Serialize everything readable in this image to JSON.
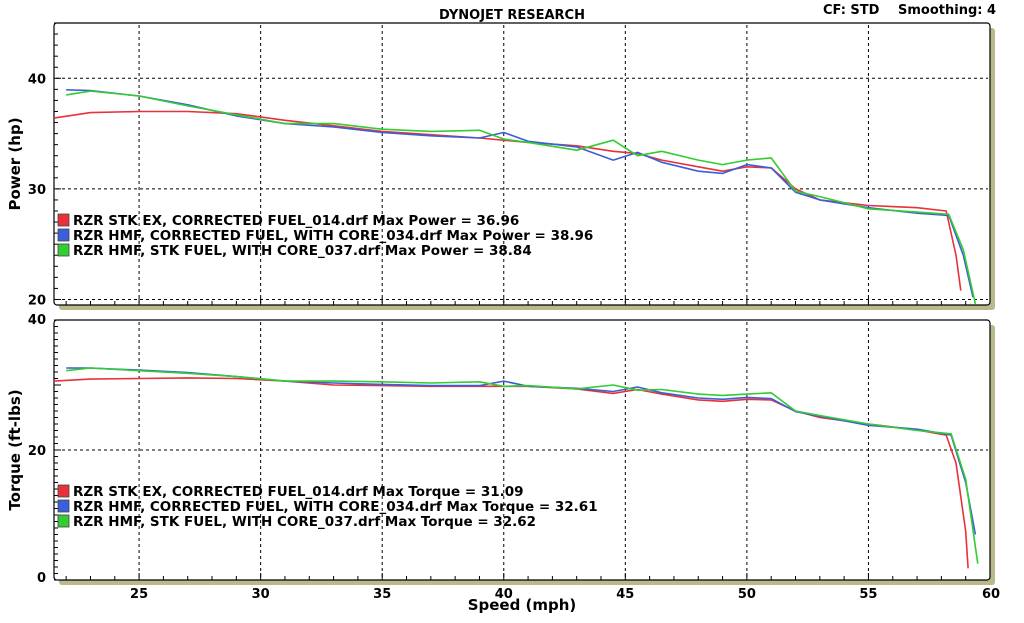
{
  "header": {
    "title": "DYNOJET RESEARCH",
    "cf": "CF: STD",
    "smoothing": "Smoothing: 4"
  },
  "colors": {
    "red": "#e8313a",
    "blue": "#3b5fd9",
    "green": "#33cc33",
    "panel_bg": "#ffffff",
    "frame_shadow": "#b9b98c",
    "grid": "#000000"
  },
  "chart_data": [
    {
      "type": "line",
      "name": "power",
      "title": "",
      "xlabel": "",
      "ylabel": "Power (hp)",
      "xlim": [
        21.5,
        60
      ],
      "ylim": [
        19.5,
        45
      ],
      "x_ticks": [
        25,
        30,
        35,
        40,
        45,
        50,
        55
      ],
      "y_ticks": [
        20,
        30,
        40
      ],
      "grid": true,
      "legend_position": "lower-left",
      "series": [
        {
          "name": "RZR STK EX, CORRECTED FUEL_014.drf",
          "legend": "RZR STK EX, CORRECTED FUEL_014.drf Max Power = 36.96",
          "color": "#e8313a",
          "points": [
            [
              21.5,
              36.4
            ],
            [
              23,
              36.9
            ],
            [
              25,
              37.0
            ],
            [
              27,
              37.0
            ],
            [
              29,
              36.8
            ],
            [
              31,
              36.2
            ],
            [
              33,
              35.7
            ],
            [
              35,
              35.2
            ],
            [
              37,
              34.9
            ],
            [
              39,
              34.6
            ],
            [
              41,
              34.2
            ],
            [
              43,
              33.9
            ],
            [
              44.5,
              33.4
            ],
            [
              45.5,
              33.2
            ],
            [
              46.5,
              32.6
            ],
            [
              48,
              32.0
            ],
            [
              49,
              31.6
            ],
            [
              50,
              32.0
            ],
            [
              51,
              31.9
            ],
            [
              52,
              30.0
            ],
            [
              53,
              29.0
            ],
            [
              55,
              28.5
            ],
            [
              57,
              28.3
            ],
            [
              58.2,
              28.0
            ],
            [
              58.6,
              24.0
            ],
            [
              58.8,
              20.8
            ]
          ]
        },
        {
          "name": "RZR HMF, CORRECTED FUEL, WITH CORE_034.drf",
          "legend": "RZR HMF, CORRECTED FUEL, WITH CORE_034.drf Max Power = 38.96",
          "color": "#3b5fd9",
          "points": [
            [
              22,
              38.96
            ],
            [
              23,
              38.9
            ],
            [
              25,
              38.4
            ],
            [
              27,
              37.6
            ],
            [
              29,
              36.6
            ],
            [
              31,
              35.9
            ],
            [
              33,
              35.6
            ],
            [
              35,
              35.1
            ],
            [
              37,
              34.8
            ],
            [
              39,
              34.6
            ],
            [
              40,
              35.1
            ],
            [
              41,
              34.3
            ],
            [
              43,
              33.8
            ],
            [
              44.5,
              32.6
            ],
            [
              45.5,
              33.3
            ],
            [
              46.5,
              32.4
            ],
            [
              48,
              31.6
            ],
            [
              49,
              31.4
            ],
            [
              50,
              32.2
            ],
            [
              51,
              31.9
            ],
            [
              52,
              29.7
            ],
            [
              53,
              29.0
            ],
            [
              55,
              28.3
            ],
            [
              57,
              27.8
            ],
            [
              58.3,
              27.6
            ],
            [
              58.9,
              24.0
            ],
            [
              59.3,
              20.2
            ]
          ]
        },
        {
          "name": "RZR HMF, STK FUEL, WITH CORE_037.drf",
          "legend": "RZR HMF, STK FUEL, WITH CORE_037.drf Max Power = 38.84",
          "color": "#33cc33",
          "points": [
            [
              22,
              38.5
            ],
            [
              23,
              38.84
            ],
            [
              25,
              38.4
            ],
            [
              27,
              37.5
            ],
            [
              29,
              36.7
            ],
            [
              31,
              35.9
            ],
            [
              33,
              35.9
            ],
            [
              35,
              35.4
            ],
            [
              37,
              35.2
            ],
            [
              39,
              35.3
            ],
            [
              40,
              34.5
            ],
            [
              41,
              34.2
            ],
            [
              43,
              33.5
            ],
            [
              44.5,
              34.4
            ],
            [
              45.5,
              33.0
            ],
            [
              46.5,
              33.4
            ],
            [
              48,
              32.6
            ],
            [
              49,
              32.2
            ],
            [
              50,
              32.6
            ],
            [
              51,
              32.8
            ],
            [
              52,
              29.8
            ],
            [
              53,
              29.3
            ],
            [
              55,
              28.2
            ],
            [
              57,
              27.9
            ],
            [
              58.3,
              27.7
            ],
            [
              58.9,
              24.5
            ],
            [
              59.4,
              19.6
            ]
          ]
        }
      ]
    },
    {
      "type": "line",
      "name": "torque",
      "title": "",
      "xlabel": "Speed (mph)",
      "ylabel": "Torque (ft-lbs)",
      "xlim": [
        21.5,
        60
      ],
      "ylim": [
        0,
        40
      ],
      "x_ticks": [
        25,
        30,
        35,
        40,
        45,
        50,
        55,
        60
      ],
      "y_ticks": [
        0,
        20,
        40
      ],
      "grid": true,
      "legend_position": "lower-left",
      "series": [
        {
          "name": "RZR STK EX, CORRECTED FUEL_014.drf",
          "legend": "RZR STK EX, CORRECTED FUEL_014.drf Max Torque = 31.09",
          "color": "#e8313a",
          "points": [
            [
              21.5,
              30.6
            ],
            [
              23,
              30.9
            ],
            [
              25,
              31.0
            ],
            [
              27,
              31.09
            ],
            [
              29,
              31.0
            ],
            [
              31,
              30.6
            ],
            [
              33,
              30.0
            ],
            [
              35,
              29.9
            ],
            [
              37,
              29.8
            ],
            [
              39,
              29.8
            ],
            [
              41,
              29.8
            ],
            [
              43,
              29.4
            ],
            [
              44.5,
              28.7
            ],
            [
              45.5,
              29.3
            ],
            [
              46.5,
              28.6
            ],
            [
              48,
              27.7
            ],
            [
              49,
              27.5
            ],
            [
              50,
              27.8
            ],
            [
              51,
              27.7
            ],
            [
              52,
              26.0
            ],
            [
              53,
              25.0
            ],
            [
              55,
              24.0
            ],
            [
              57,
              23.1
            ],
            [
              58.2,
              22.3
            ],
            [
              58.6,
              18.0
            ],
            [
              59.0,
              7.5
            ],
            [
              59.1,
              1.8
            ]
          ]
        },
        {
          "name": "RZR HMF, CORRECTED FUEL, WITH CORE_034.drf",
          "legend": "RZR HMF, CORRECTED FUEL, WITH CORE_034.drf Max Torque = 32.61",
          "color": "#3b5fd9",
          "points": [
            [
              22,
              32.61
            ],
            [
              23,
              32.6
            ],
            [
              25,
              32.3
            ],
            [
              27,
              31.9
            ],
            [
              29,
              31.3
            ],
            [
              31,
              30.6
            ],
            [
              33,
              30.3
            ],
            [
              35,
              30.1
            ],
            [
              37,
              29.9
            ],
            [
              39,
              29.9
            ],
            [
              40,
              30.6
            ],
            [
              41,
              29.8
            ],
            [
              43,
              29.5
            ],
            [
              44.5,
              29.0
            ],
            [
              45.5,
              29.7
            ],
            [
              46.5,
              28.8
            ],
            [
              48,
              28.0
            ],
            [
              49,
              27.8
            ],
            [
              50,
              28.1
            ],
            [
              51,
              27.9
            ],
            [
              52,
              25.9
            ],
            [
              53,
              25.2
            ],
            [
              55,
              23.8
            ],
            [
              57,
              23.2
            ],
            [
              58.4,
              22.3
            ],
            [
              59.0,
              15.0
            ],
            [
              59.4,
              7.0
            ]
          ]
        },
        {
          "name": "RZR HMF, STK FUEL, WITH CORE_037.drf",
          "legend": "RZR HMF, STK FUEL, WITH CORE_037.drf Max Torque = 32.62",
          "color": "#33cc33",
          "points": [
            [
              22,
              32.2
            ],
            [
              23,
              32.62
            ],
            [
              25,
              32.2
            ],
            [
              27,
              31.8
            ],
            [
              29,
              31.3
            ],
            [
              31,
              30.6
            ],
            [
              33,
              30.6
            ],
            [
              35,
              30.5
            ],
            [
              37,
              30.3
            ],
            [
              39,
              30.5
            ],
            [
              40,
              29.8
            ],
            [
              41,
              29.9
            ],
            [
              43,
              29.4
            ],
            [
              44.5,
              30.0
            ],
            [
              45.5,
              29.2
            ],
            [
              46.5,
              29.3
            ],
            [
              48,
              28.6
            ],
            [
              49,
              28.4
            ],
            [
              50,
              28.6
            ],
            [
              51,
              28.8
            ],
            [
              52,
              26.0
            ],
            [
              53,
              25.3
            ],
            [
              55,
              24.0
            ],
            [
              57,
              23.0
            ],
            [
              58.4,
              22.5
            ],
            [
              59.0,
              15.5
            ],
            [
              59.5,
              2.5
            ]
          ]
        }
      ]
    }
  ]
}
